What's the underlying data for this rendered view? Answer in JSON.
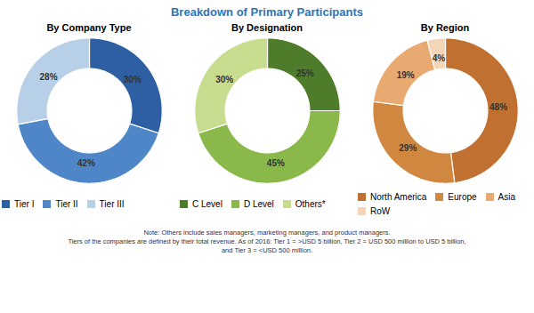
{
  "title": "Breakdown of Primary Participants",
  "annotations": [
    "Note: Others include sales managers, marketing managers, and product managers.",
    "Tiers of the companies are defined by their total revenue. As of 2016: Tier 1 = >USD 5 billion, Tier 2 = USD 500 million to USD 5 billion,",
    "and Tier 3 = <USD 500 million."
  ],
  "chart_data": [
    {
      "type": "pie",
      "title": "By Company Type",
      "categories": [
        "Tier I",
        "Tier II",
        "Tier III"
      ],
      "values": [
        30,
        42,
        28
      ],
      "value_labels": [
        "30%",
        "42%",
        "28%"
      ],
      "colors": [
        "#2e5fa3",
        "#4e86c8",
        "#b8cfe8"
      ],
      "data_labels": true,
      "legend": "bottom"
    },
    {
      "type": "pie",
      "title": "By Designation",
      "categories": [
        "C Level",
        "D Level",
        "Others*"
      ],
      "values": [
        25,
        45,
        30
      ],
      "value_labels": [
        "25%",
        "45%",
        "30%"
      ],
      "colors": [
        "#4e7c2a",
        "#8ab84a",
        "#c8dc90"
      ],
      "data_labels": true,
      "legend": "bottom"
    },
    {
      "type": "pie",
      "title": "By Region",
      "categories": [
        "North America",
        "Europe",
        "Asia",
        "RoW"
      ],
      "values": [
        48,
        29,
        19,
        4
      ],
      "value_labels": [
        "48%",
        "29%",
        "19%",
        "4%"
      ],
      "colors": [
        "#c07030",
        "#d08840",
        "#e8aa70",
        "#f5d5b8"
      ],
      "data_labels": true,
      "legend": "bottom"
    }
  ]
}
